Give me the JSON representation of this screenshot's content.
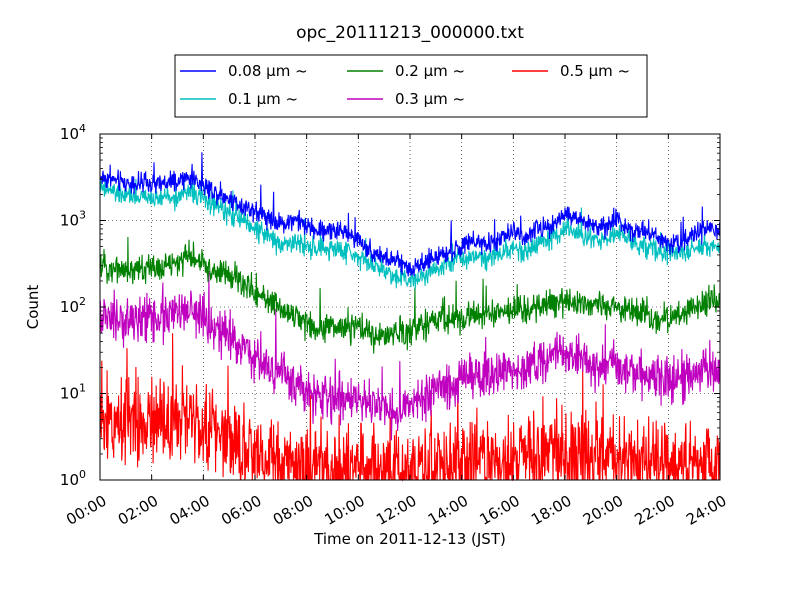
{
  "chart_data": {
    "type": "line",
    "title": "opc_20111213_000000.txt",
    "xlabel": "Time on 2011-12-13 (JST)",
    "ylabel": "Count",
    "x_ticks": [
      "00:00",
      "02:00",
      "04:00",
      "06:00",
      "08:00",
      "10:00",
      "12:00",
      "14:00",
      "16:00",
      "18:00",
      "20:00",
      "22:00",
      "24:00"
    ],
    "x_range_hours": [
      0,
      24
    ],
    "y_scale": "log",
    "ylim": [
      1,
      10000
    ],
    "y_ticks": [
      {
        "base": "10",
        "exp": "0"
      },
      {
        "base": "10",
        "exp": "1"
      },
      {
        "base": "10",
        "exp": "2"
      },
      {
        "base": "10",
        "exp": "3"
      },
      {
        "base": "10",
        "exp": "4"
      }
    ],
    "grid": true,
    "legend_position": "top-center, above plot",
    "series": [
      {
        "name": "0.08 μm ~",
        "color": "#0000ff",
        "noise": 0.06,
        "x": [
          0,
          1,
          2,
          3,
          3.5,
          4,
          4.5,
          5,
          5.5,
          6,
          6.5,
          7,
          7.5,
          8,
          8.5,
          9,
          9.5,
          10,
          10.5,
          11,
          11.5,
          12,
          12.5,
          13,
          13.5,
          14,
          14.5,
          15,
          15.5,
          16,
          16.5,
          17,
          17.5,
          18,
          18.5,
          19,
          19.5,
          20,
          20.5,
          21,
          21.5,
          22,
          22.5,
          23,
          23.5,
          24
        ],
        "y": [
          3200,
          2700,
          2600,
          2700,
          3200,
          2600,
          2100,
          1800,
          1500,
          1300,
          1100,
          900,
          1050,
          850,
          750,
          800,
          700,
          600,
          450,
          370,
          330,
          280,
          320,
          380,
          420,
          500,
          550,
          520,
          600,
          750,
          650,
          800,
          900,
          1200,
          1000,
          900,
          800,
          1050,
          800,
          750,
          700,
          550,
          560,
          700,
          800,
          750
        ]
      },
      {
        "name": "0.1 μm ~",
        "color": "#00bfbf",
        "noise": 0.06,
        "x": [
          0,
          1,
          2,
          3,
          3.5,
          4,
          4.5,
          5,
          5.5,
          6,
          6.5,
          7,
          7.5,
          8,
          8.5,
          9,
          9.5,
          10,
          10.5,
          11,
          11.5,
          12,
          12.5,
          13,
          13.5,
          14,
          14.5,
          15,
          15.5,
          16,
          16.5,
          17,
          17.5,
          18,
          18.5,
          19,
          19.5,
          20,
          20.5,
          21,
          21.5,
          22,
          22.5,
          23,
          23.5,
          24
        ],
        "y": [
          2400,
          1900,
          1800,
          1900,
          2200,
          1800,
          1500,
          1200,
          1000,
          800,
          650,
          550,
          560,
          500,
          450,
          480,
          440,
          400,
          310,
          260,
          230,
          200,
          240,
          280,
          330,
          360,
          400,
          380,
          420,
          480,
          440,
          550,
          620,
          800,
          700,
          650,
          600,
          700,
          600,
          500,
          470,
          410,
          420,
          460,
          510,
          500
        ]
      },
      {
        "name": "0.2 μm ~",
        "color": "#008000",
        "noise": 0.08,
        "x": [
          0,
          1,
          2,
          3,
          3.5,
          4,
          4.5,
          5,
          5.5,
          6,
          6.5,
          7,
          7.5,
          8,
          8.5,
          9,
          9.5,
          10,
          10.5,
          11,
          11.5,
          12,
          12.5,
          13,
          13.5,
          14,
          14.5,
          15,
          15.5,
          16,
          16.5,
          17,
          17.5,
          18,
          18.5,
          19,
          19.5,
          20,
          20.5,
          21,
          21.5,
          22,
          22.5,
          23,
          23.5,
          24
        ],
        "y": [
          300,
          270,
          280,
          320,
          400,
          300,
          260,
          230,
          190,
          150,
          120,
          95,
          80,
          65,
          58,
          60,
          57,
          55,
          48,
          45,
          48,
          55,
          62,
          68,
          72,
          75,
          80,
          82,
          85,
          90,
          92,
          100,
          110,
          120,
          115,
          105,
          98,
          100,
          90,
          80,
          75,
          70,
          85,
          100,
          110,
          115
        ]
      },
      {
        "name": "0.3 μm ~",
        "color": "#bf00bf",
        "noise": 0.13,
        "x": [
          0,
          1,
          2,
          3,
          3.5,
          4,
          4.5,
          5,
          5.5,
          6,
          6.5,
          7,
          7.5,
          8,
          8.5,
          9,
          9.5,
          10,
          10.5,
          11,
          11.5,
          12,
          12.5,
          13,
          13.5,
          14,
          14.5,
          15,
          15.5,
          16,
          16.5,
          17,
          17.5,
          18,
          18.5,
          19,
          19.5,
          20,
          20.5,
          21,
          21.5,
          22,
          22.5,
          23,
          23.5,
          24
        ],
        "y": [
          70,
          70,
          75,
          80,
          90,
          70,
          55,
          45,
          35,
          25,
          20,
          17,
          14,
          10,
          9,
          9,
          8,
          9,
          7,
          6,
          6,
          7,
          9,
          11,
          12,
          14,
          15,
          15,
          17,
          20,
          18,
          22,
          25,
          30,
          28,
          22,
          20,
          21,
          18,
          16,
          14,
          14,
          15,
          17,
          19,
          20
        ]
      },
      {
        "name": "0.5 μm ~",
        "color": "#ff0000",
        "noise": 0.25,
        "x": [
          0,
          1,
          2,
          3,
          3.5,
          4,
          4.5,
          5,
          5.5,
          6,
          6.5,
          7,
          7.5,
          8,
          9,
          10,
          11,
          12,
          13,
          14,
          15,
          16,
          17,
          18,
          19,
          20,
          21,
          22,
          23,
          24
        ],
        "y": [
          4.5,
          5,
          5.5,
          6,
          5,
          4.5,
          3.5,
          3,
          2.5,
          2,
          1.6,
          1.4,
          1.3,
          1.3,
          1.3,
          1.3,
          1.2,
          1.3,
          1.4,
          1.5,
          1.6,
          1.8,
          2,
          2,
          1.8,
          1.7,
          1.6,
          1.5,
          1.6,
          1.7
        ]
      }
    ]
  }
}
